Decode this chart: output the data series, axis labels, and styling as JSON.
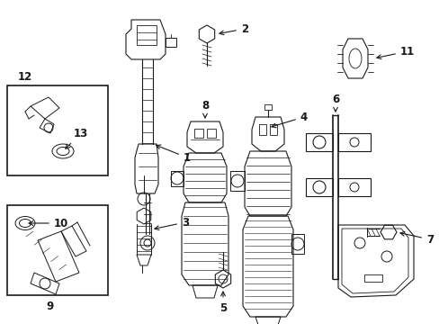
{
  "bg_color": "#ffffff",
  "line_color": "#1a1a1a",
  "fig_width": 4.89,
  "fig_height": 3.6,
  "dpi": 100,
  "xlim": [
    0,
    489
  ],
  "ylim": [
    0,
    360
  ]
}
